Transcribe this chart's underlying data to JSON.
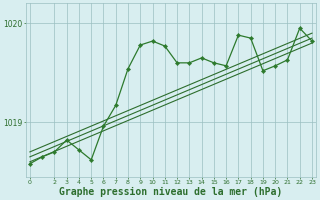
{
  "bg_color": "#d8eef0",
  "grid_color": "#9bbfc2",
  "line_color": "#2d6e2d",
  "line_color_main": "#2d7a2d",
  "xlabel": "Graphe pression niveau de la mer (hPa)",
  "xlabel_fontsize": 7,
  "yticks": [
    1019,
    1020
  ],
  "xtick_labels": [
    "0",
    "2",
    "3",
    "4",
    "5",
    "6",
    "7",
    "8",
    "9",
    "10",
    "11",
    "12",
    "13",
    "14",
    "15",
    "16",
    "17",
    "18",
    "19",
    "20",
    "21",
    "22",
    "23"
  ],
  "xtick_positions": [
    0,
    2,
    3,
    4,
    5,
    6,
    7,
    8,
    9,
    10,
    11,
    12,
    13,
    14,
    15,
    16,
    17,
    18,
    19,
    20,
    21,
    22,
    23
  ],
  "xlim": [
    -0.3,
    23.3
  ],
  "ylim": [
    1018.45,
    1020.2
  ],
  "main_x": [
    0,
    1,
    2,
    3,
    4,
    5,
    6,
    7,
    8,
    9,
    10,
    11,
    12,
    13,
    14,
    15,
    16,
    17,
    18,
    19,
    20,
    21,
    22,
    23
  ],
  "main_y": [
    1018.58,
    1018.65,
    1018.7,
    1018.82,
    1018.72,
    1018.62,
    1018.96,
    1019.17,
    1019.54,
    1019.78,
    1019.82,
    1019.77,
    1019.6,
    1019.6,
    1019.65,
    1019.6,
    1019.57,
    1019.88,
    1019.85,
    1019.52,
    1019.57,
    1019.63,
    1019.95,
    1019.82
  ],
  "trend1_x": [
    0,
    23
  ],
  "trend1_y": [
    1018.6,
    1019.8
  ],
  "trend2_x": [
    0,
    23
  ],
  "trend2_y": [
    1018.65,
    1019.85
  ],
  "trend3_x": [
    0,
    23
  ],
  "trend3_y": [
    1018.7,
    1019.9
  ],
  "marker": "D",
  "marker_size": 2.2,
  "linewidth_main": 0.9,
  "linewidth_trend": 0.8
}
